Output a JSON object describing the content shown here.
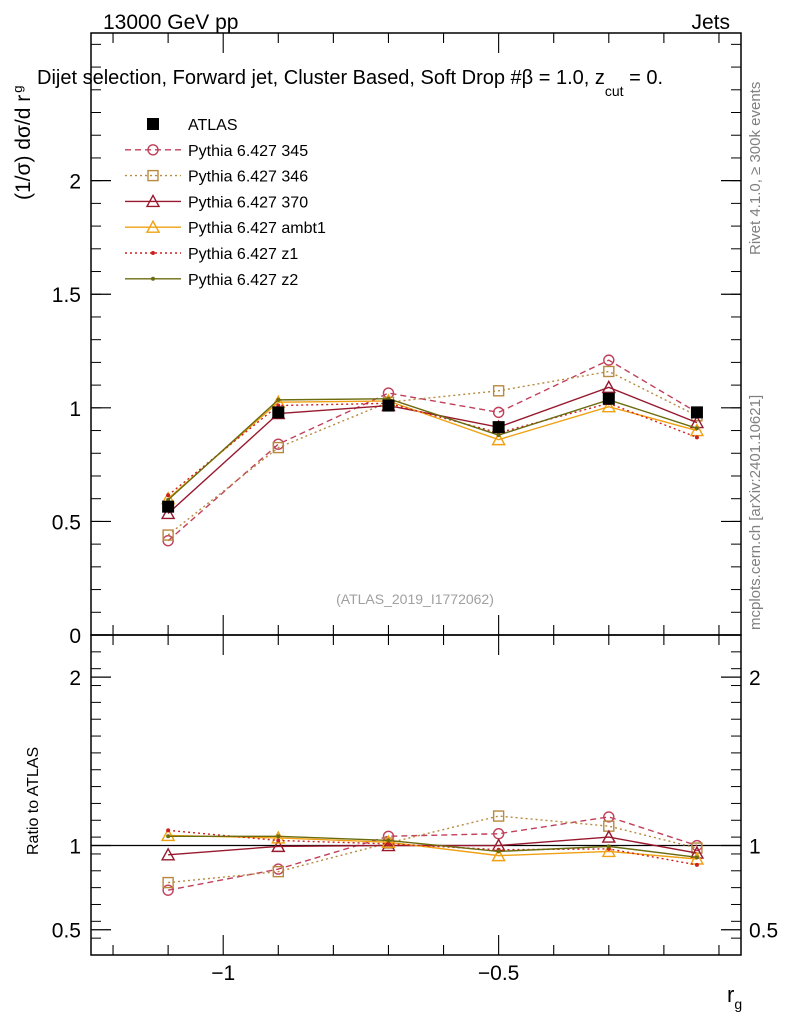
{
  "header": {
    "left": "13000 GeV pp",
    "right": "Jets",
    "title": "Dijet selection, Forward jet, Cluster Based, Soft Drop #β = 1.0, z",
    "title_sub": "cut",
    "title_tail": " = 0."
  },
  "side": {
    "rivet": "Rivet 4.1.0, ≥ 300k events",
    "mcplots": "mcplots.cern.ch [arXiv:2401.10621]"
  },
  "reference": "(ATLAS_2019_I1772062)",
  "colors": {
    "ATLAS": "#000000",
    "p345": "#c0405a",
    "p346": "#b8893e",
    "p370": "#98182e",
    "ambt1": "#f0a010",
    "z1": "#cc2020",
    "z2": "#6b6b10"
  },
  "chart_data": [
    {
      "panel": "main",
      "type": "line",
      "ylabel": "(1/σ) dσ/d r",
      "ylabel_sub": "g",
      "xlim": [
        -1.24,
        -0.06
      ],
      "ylim": [
        0,
        2.65
      ],
      "yticks": [
        0,
        0.5,
        1,
        1.5,
        2
      ],
      "ytick_labels": [
        "0",
        "0.5",
        "1",
        "1.5",
        "2"
      ],
      "x": [
        -1.1,
        -0.9,
        -0.7,
        -0.5,
        -0.3,
        -0.14
      ],
      "series": [
        {
          "name": "ATLAS",
          "style": "data",
          "values": [
            0.565,
            0.98,
            1.01,
            0.915,
            1.04,
            0.98
          ]
        },
        {
          "name": "Pythia 6.427 345",
          "style": "circle-dashed",
          "values": [
            0.415,
            0.84,
            1.065,
            0.98,
            1.21,
            0.98
          ]
        },
        {
          "name": "Pythia 6.427 346",
          "style": "square-dotted",
          "values": [
            0.44,
            0.825,
            1.025,
            1.075,
            1.16,
            0.965
          ]
        },
        {
          "name": "Pythia 6.427 370",
          "style": "triangle-solid",
          "values": [
            0.535,
            0.975,
            1.01,
            0.915,
            1.09,
            0.935
          ]
        },
        {
          "name": "Pythia 6.427 ambt1",
          "style": "triangle-solid-light",
          "values": [
            0.6,
            1.025,
            1.03,
            0.86,
            1.005,
            0.9
          ]
        },
        {
          "name": "Pythia 6.427 z1",
          "style": "dot-dotted",
          "values": [
            0.615,
            1.01,
            1.02,
            0.89,
            1.02,
            0.87
          ]
        },
        {
          "name": "Pythia 6.427 z2",
          "style": "dot-solid",
          "values": [
            0.595,
            1.035,
            1.04,
            0.88,
            1.035,
            0.91
          ]
        }
      ]
    },
    {
      "panel": "ratio",
      "type": "line",
      "ylabel": "Ratio to ATLAS",
      "xlabel": "r",
      "xlabel_sub": "g",
      "xlim": [
        -1.24,
        -0.06
      ],
      "ylim": [
        0.35,
        2.25
      ],
      "yticks": [
        0.5,
        1,
        2
      ],
      "ytick_labels": [
        "0.5",
        "1",
        "2"
      ],
      "xticks": [
        -1,
        -0.5
      ],
      "xtick_labels": [
        "−1",
        "−0.5"
      ],
      "x": [
        -1.1,
        -0.9,
        -0.7,
        -0.5,
        -0.3,
        -0.14
      ],
      "series": [
        {
          "name": "Pythia 6.427 345",
          "style": "circle-dashed",
          "values": [
            0.735,
            0.86,
            1.055,
            1.07,
            1.17,
            1.0
          ]
        },
        {
          "name": "Pythia 6.427 346",
          "style": "square-dotted",
          "values": [
            0.78,
            0.845,
            1.015,
            1.175,
            1.115,
            0.985
          ]
        },
        {
          "name": "Pythia 6.427 370",
          "style": "triangle-solid",
          "values": [
            0.945,
            0.995,
            1.0,
            1.0,
            1.05,
            0.955
          ]
        },
        {
          "name": "Pythia 6.427 ambt1",
          "style": "triangle-solid-light",
          "values": [
            1.06,
            1.045,
            1.02,
            0.94,
            0.965,
            0.92
          ]
        },
        {
          "name": "Pythia 6.427 z1",
          "style": "dot-dotted",
          "values": [
            1.09,
            1.03,
            1.01,
            0.975,
            0.98,
            0.885
          ]
        },
        {
          "name": "Pythia 6.427 z2",
          "style": "dot-solid",
          "values": [
            1.055,
            1.055,
            1.03,
            0.965,
            0.995,
            0.93
          ]
        }
      ]
    }
  ]
}
